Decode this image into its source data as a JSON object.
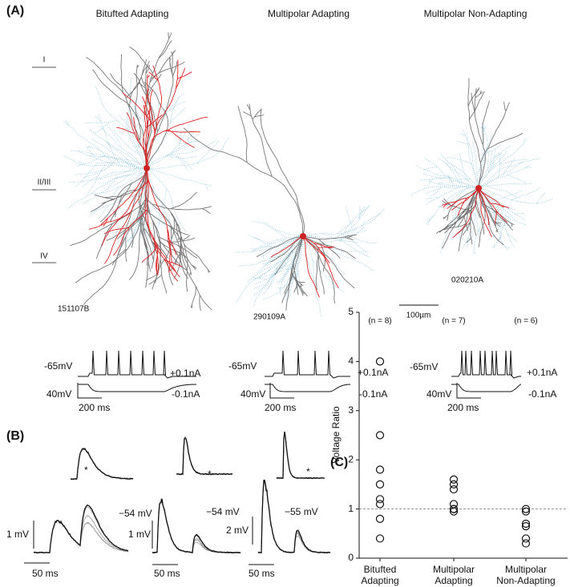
{
  "panel_a": {
    "label": "(A)",
    "titles": [
      "Bitufted Adapting",
      "Multipolar Adapting",
      "Multipolar Non-Adapting"
    ],
    "layers": [
      "I",
      "II/III",
      "IV"
    ],
    "cell_ids": [
      "151107B",
      "290109A",
      "020210A"
    ],
    "scale_bar": "100µm",
    "traces": [
      {
        "resting": "-65mV",
        "positive": "+0.1nA",
        "negative": "-0.1nA",
        "v_scale": "40mV",
        "t_scale": "200 ms"
      },
      {
        "resting": "-65mV",
        "positive": "+0.1nA",
        "negative": "-0.1nA",
        "v_scale": "40mV",
        "t_scale": "200 ms"
      },
      {
        "resting": "-65mV",
        "positive": "+0.1nA",
        "negative": "-0.1nA",
        "v_scale": "40mV",
        "t_scale": "200 ms"
      }
    ]
  },
  "panel_b": {
    "label": "(B)",
    "traces": [
      {
        "marker": "*",
        "potential": "−54 mV",
        "v_scale": "1 mV",
        "t_scale": "50 ms"
      },
      {
        "marker": "*",
        "potential": "−54 mV",
        "v_scale": "1 mV",
        "t_scale": "50 ms"
      },
      {
        "marker": "*",
        "potential": "−55 mV",
        "v_scale": "2 mV",
        "t_scale": "50 ms"
      }
    ]
  },
  "chart_data": {
    "type": "scatter",
    "label": "(C)",
    "y_label": "Voltage Ratio",
    "categories": [
      [
        "Bitufted",
        "Adapting"
      ],
      [
        "Multipolar",
        "Adapting"
      ],
      [
        "Multipolar",
        "Non-Adapting"
      ]
    ],
    "n_labels": [
      "(n = 8)",
      "(n = 7)",
      "(n = 6)"
    ],
    "values": [
      [
        4.0,
        2.5,
        1.8,
        1.5,
        1.2,
        1.1,
        0.8,
        0.4
      ],
      [
        1.6,
        1.5,
        1.4,
        1.1,
        1.0,
        1.0,
        0.95
      ],
      [
        1.0,
        0.95,
        0.7,
        0.65,
        0.4,
        0.3
      ]
    ],
    "ylim": [
      0,
      5
    ],
    "yticks": [
      0,
      1,
      2,
      3,
      4,
      5
    ],
    "reference_line": 1
  }
}
